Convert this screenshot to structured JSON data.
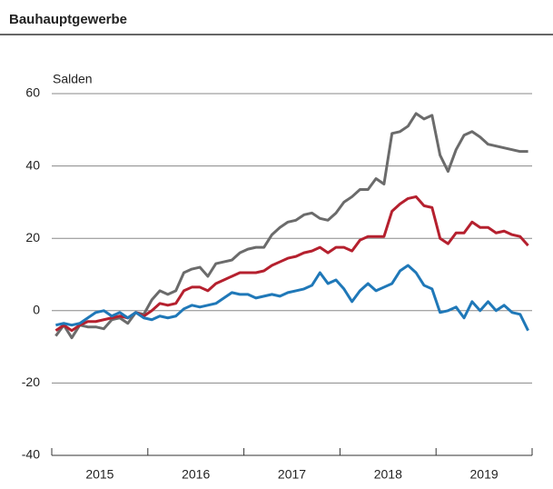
{
  "chart_data": {
    "type": "line",
    "title": "Bauhauptgewerbe",
    "y_label": "Salden",
    "categories": [
      null,
      null,
      null,
      null,
      null,
      "2015",
      null,
      null,
      null,
      null,
      null,
      null,
      null,
      null,
      null,
      null,
      null,
      "2016",
      null,
      null,
      null,
      null,
      null,
      null,
      null,
      null,
      null,
      null,
      null,
      "2017",
      null,
      null,
      null,
      null,
      null,
      null,
      null,
      null,
      null,
      null,
      null,
      "2018",
      null,
      null,
      null,
      null,
      null,
      null,
      null,
      null,
      null,
      null,
      null,
      "2019",
      null,
      null,
      null,
      null,
      null,
      null
    ],
    "ylim": [
      -40,
      60
    ],
    "yticks": [
      -40,
      -20,
      0,
      20,
      40,
      60
    ],
    "grid": true,
    "series": [
      {
        "color": "#6b6b6b",
        "values": [
          -7,
          -4,
          -7.5,
          -4,
          -4.5,
          -4.5,
          -5,
          -2.5,
          -2,
          -3.5,
          -0.5,
          -1,
          3,
          5.5,
          4.5,
          5.5,
          10.5,
          11.5,
          12,
          9.5,
          13,
          13.5,
          14,
          16,
          17,
          17.5,
          17.5,
          21,
          23,
          24.5,
          25,
          26.5,
          27,
          25.5,
          25,
          27,
          30,
          31.5,
          33.5,
          33.5,
          36.5,
          35,
          49,
          49.5,
          51,
          54.5,
          53,
          54,
          43,
          38.5,
          44.5,
          48.5,
          49.5,
          48,
          46,
          45.5,
          45,
          44.5,
          44,
          44
        ]
      },
      {
        "color": "#b5202e",
        "values": [
          -5.5,
          -4,
          -5.5,
          -4,
          -3,
          -3,
          -2.5,
          -2,
          -1.5,
          -2,
          -0.5,
          -1.5,
          0,
          2,
          1.5,
          2,
          5.5,
          6.5,
          6.5,
          5.5,
          7.5,
          8.5,
          9.5,
          10.5,
          10.5,
          10.5,
          11,
          12.5,
          13.5,
          14.5,
          15,
          16,
          16.5,
          17.5,
          16,
          17.5,
          17.5,
          16.5,
          19.5,
          20.5,
          20.5,
          20.5,
          27.5,
          29.5,
          31,
          31.5,
          29,
          28.5,
          20,
          18.5,
          21.5,
          21.5,
          24.5,
          23,
          23,
          21.5,
          22,
          21,
          20.5,
          18
        ]
      },
      {
        "color": "#1f78b8",
        "values": [
          -4,
          -3.5,
          -4,
          -3.5,
          -2,
          -0.5,
          0,
          -1.5,
          -0.5,
          -2,
          -0.5,
          -2,
          -2.5,
          -1.5,
          -2,
          -1.5,
          0.5,
          1.5,
          1,
          1.5,
          2,
          3.5,
          5,
          4.5,
          4.5,
          3.5,
          4,
          4.5,
          4,
          5,
          5.5,
          6,
          7,
          10.5,
          7.5,
          8.5,
          6,
          2.5,
          5.5,
          7.5,
          5.5,
          6.5,
          7.5,
          11,
          12.5,
          10.5,
          7,
          6,
          -0.5,
          0,
          1,
          -2,
          2.5,
          0,
          2.5,
          0,
          1.5,
          -0.5,
          -1,
          -5.5
        ]
      }
    ]
  }
}
